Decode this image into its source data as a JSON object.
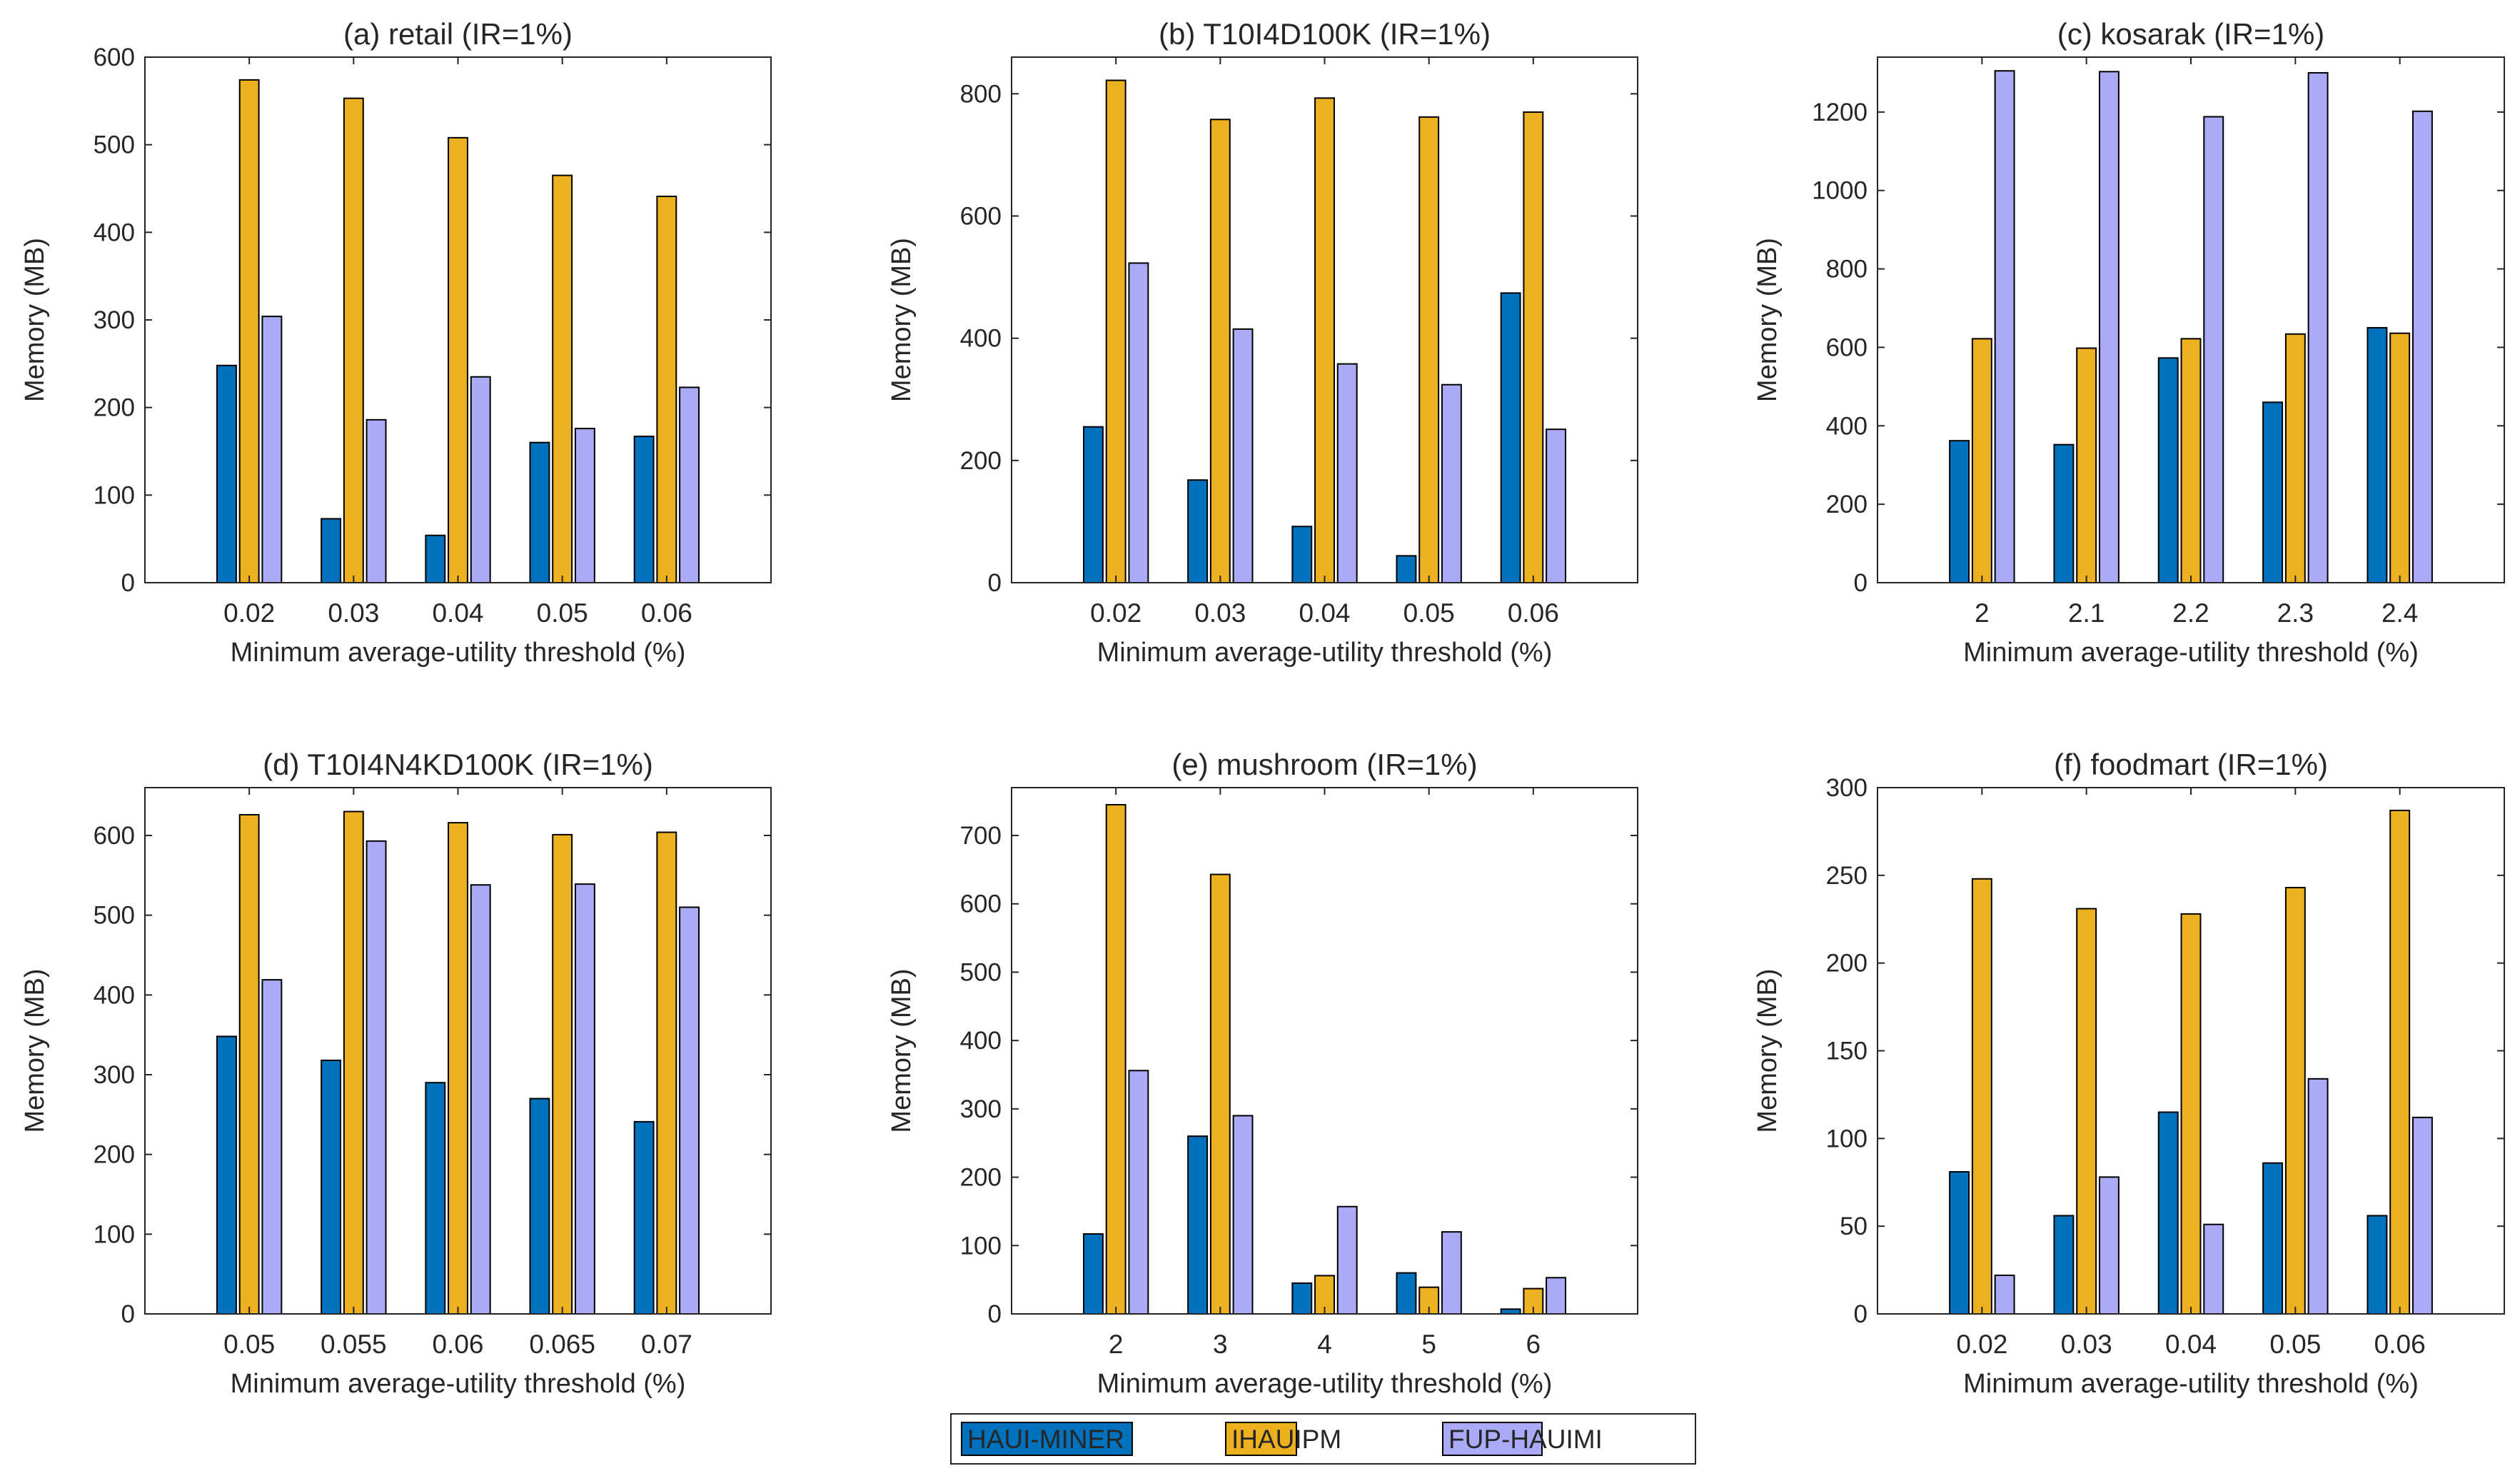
{
  "legend": {
    "placement": "bottom-center",
    "entries": [
      {
        "name": "HAUI-MINER",
        "color": "#0072BD"
      },
      {
        "name": "IHAUIPM",
        "color": "#EDB120"
      },
      {
        "name": "FUP-HAUIMI",
        "color": "#AAAAF7"
      }
    ]
  },
  "chart_data": [
    {
      "type": "bar",
      "title": "(a) retail (IR=1%)",
      "xlabel": "Minimum average-utility threshold (%)",
      "ylabel": "Memory (MB)",
      "ylim": [
        0,
        600
      ],
      "yticks": [
        0,
        100,
        200,
        300,
        400,
        500,
        600
      ],
      "categories": [
        "0.02",
        "0.03",
        "0.04",
        "0.05",
        "0.06"
      ],
      "series": [
        {
          "name": "HAUI-MINER",
          "values": [
            248,
            73,
            54,
            160,
            167
          ]
        },
        {
          "name": "IHAUIPM",
          "values": [
            574,
            553,
            508,
            465,
            441
          ]
        },
        {
          "name": "FUP-HAUIMI",
          "values": [
            304,
            186,
            235,
            176,
            223
          ]
        }
      ]
    },
    {
      "type": "bar",
      "title": "(b) T10I4D100K (IR=1%)",
      "xlabel": "Minimum average-utility threshold (%)",
      "ylabel": "Memory (MB)",
      "ylim": [
        0,
        860
      ],
      "yticks": [
        0,
        200,
        400,
        600,
        800
      ],
      "categories": [
        "0.02",
        "0.03",
        "0.04",
        "0.05",
        "0.06"
      ],
      "series": [
        {
          "name": "HAUI-MINER",
          "values": [
            255,
            168,
            92,
            44,
            474
          ]
        },
        {
          "name": "IHAUIPM",
          "values": [
            822,
            758,
            793,
            762,
            770
          ]
        },
        {
          "name": "FUP-HAUIMI",
          "values": [
            523,
            415,
            358,
            324,
            251
          ]
        }
      ]
    },
    {
      "type": "bar",
      "title": "(c) kosarak (IR=1%)",
      "xlabel": "Minimum average-utility threshold (%)",
      "ylabel": "Memory (MB)",
      "ylim": [
        0,
        1340
      ],
      "yticks": [
        0,
        200,
        400,
        600,
        800,
        1000,
        1200
      ],
      "categories": [
        "2",
        "2.1",
        "2.2",
        "2.3",
        "2.4"
      ],
      "series": [
        {
          "name": "HAUI-MINER",
          "values": [
            362,
            352,
            573,
            460,
            650
          ]
        },
        {
          "name": "IHAUIPM",
          "values": [
            622,
            598,
            622,
            634,
            636
          ]
        },
        {
          "name": "FUP-HAUIMI",
          "values": [
            1305,
            1303,
            1188,
            1300,
            1202
          ]
        }
      ]
    },
    {
      "type": "bar",
      "title": "(d) T10I4N4KD100K (IR=1%)",
      "xlabel": "Minimum average-utility threshold (%)",
      "ylabel": "Memory (MB)",
      "ylim": [
        0,
        660
      ],
      "yticks": [
        0,
        100,
        200,
        300,
        400,
        500,
        600
      ],
      "categories": [
        "0.05",
        "0.055",
        "0.06",
        "0.065",
        "0.07"
      ],
      "series": [
        {
          "name": "HAUI-MINER",
          "values": [
            348,
            318,
            290,
            270,
            241
          ]
        },
        {
          "name": "IHAUIPM",
          "values": [
            626,
            630,
            616,
            601,
            604
          ]
        },
        {
          "name": "FUP-HAUIMI",
          "values": [
            419,
            593,
            538,
            539,
            510
          ]
        }
      ]
    },
    {
      "type": "bar",
      "title": "(e) mushroom (IR=1%)",
      "xlabel": "Minimum average-utility threshold (%)",
      "ylabel": "Memory (MB)",
      "ylim": [
        0,
        770
      ],
      "yticks": [
        0,
        100,
        200,
        300,
        400,
        500,
        600,
        700
      ],
      "categories": [
        "2",
        "3",
        "4",
        "5",
        "6"
      ],
      "series": [
        {
          "name": "HAUI-MINER",
          "values": [
            117,
            260,
            45,
            60,
            7
          ]
        },
        {
          "name": "IHAUIPM",
          "values": [
            745,
            643,
            56,
            39,
            37
          ]
        },
        {
          "name": "FUP-HAUIMI",
          "values": [
            356,
            290,
            157,
            120,
            53
          ]
        }
      ]
    },
    {
      "type": "bar",
      "title": "(f) foodmart (IR=1%)",
      "xlabel": "Minimum average-utility threshold (%)",
      "ylabel": "Memory (MB)",
      "ylim": [
        0,
        300
      ],
      "yticks": [
        0,
        50,
        100,
        150,
        200,
        250,
        300
      ],
      "categories": [
        "0.02",
        "0.03",
        "0.04",
        "0.05",
        "0.06"
      ],
      "series": [
        {
          "name": "HAUI-MINER",
          "values": [
            81,
            56,
            115,
            86,
            56
          ]
        },
        {
          "name": "IHAUIPM",
          "values": [
            248,
            231,
            228,
            243,
            287
          ]
        },
        {
          "name": "FUP-HAUIMI",
          "values": [
            22,
            78,
            51,
            134,
            112
          ]
        }
      ]
    }
  ]
}
